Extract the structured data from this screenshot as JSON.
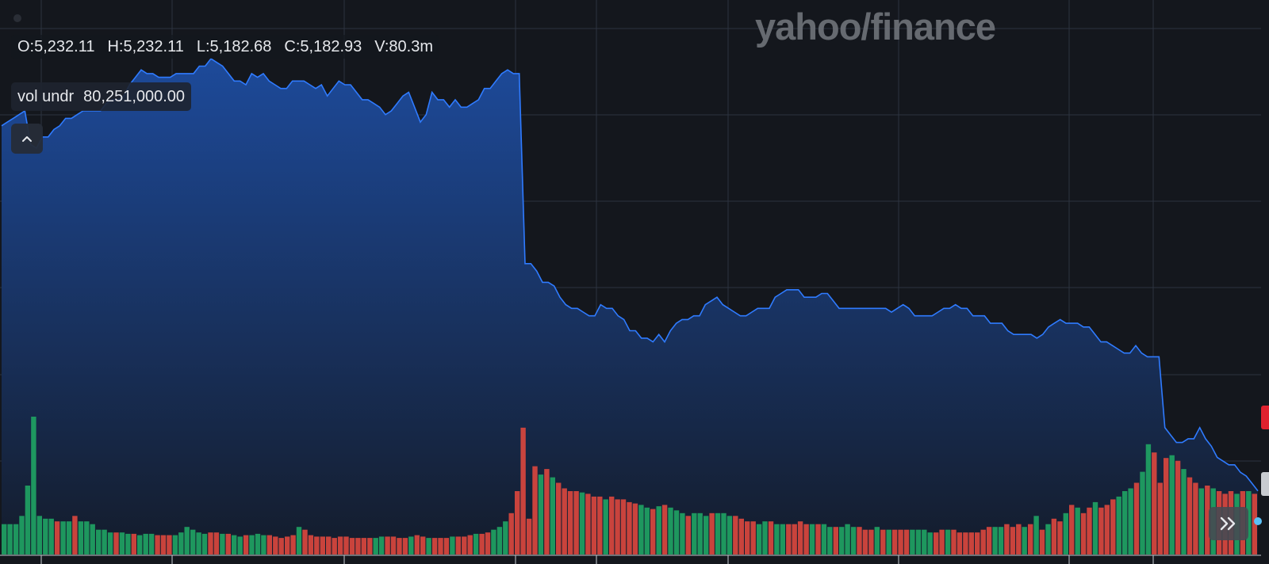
{
  "chart_data": {
    "type": "area",
    "price_series": [
      5244,
      5245,
      5246,
      5247,
      5248,
      5239,
      5238,
      5241,
      5241,
      5243,
      5244,
      5246,
      5246,
      5247,
      5248,
      5248,
      5248,
      5248,
      5250,
      5251,
      5251,
      5252,
      5255,
      5257,
      5259,
      5258,
      5258,
      5257,
      5257,
      5257,
      5258,
      5258,
      5258,
      5258,
      5260,
      5260,
      5262,
      5261,
      5260,
      5258,
      5256,
      5256,
      5255,
      5258,
      5257,
      5258,
      5256,
      5255,
      5254,
      5254,
      5256,
      5256,
      5256,
      5255,
      5254,
      5255,
      5252,
      5254,
      5256,
      5255,
      5255,
      5253,
      5251,
      5251,
      5250,
      5249,
      5247,
      5248,
      5250,
      5252,
      5253,
      5249,
      5245,
      5247,
      5253,
      5251,
      5251,
      5249,
      5251,
      5249,
      5249,
      5250,
      5251,
      5254,
      5254,
      5256,
      5258,
      5259,
      5258,
      5258,
      5207,
      5207,
      5205,
      5202,
      5202,
      5201,
      5198,
      5196,
      5195,
      5195,
      5194,
      5193,
      5193,
      5196,
      5195,
      5195,
      5193,
      5192,
      5189,
      5189,
      5187,
      5187,
      5186,
      5188,
      5186,
      5189,
      5191,
      5192,
      5192,
      5193,
      5193,
      5196,
      5197,
      5198,
      5196,
      5195,
      5194,
      5193,
      5193,
      5194,
      5195,
      5195,
      5195,
      5198,
      5199,
      5200,
      5200,
      5200,
      5198,
      5198,
      5198,
      5199,
      5199,
      5197,
      5195,
      5195,
      5195,
      5195,
      5195,
      5195,
      5195,
      5195,
      5195,
      5194,
      5195,
      5196,
      5195,
      5193,
      5193,
      5193,
      5193,
      5194,
      5195,
      5195,
      5196,
      5195,
      5195,
      5193,
      5193,
      5193,
      5191,
      5191,
      5191,
      5189,
      5188,
      5188,
      5188,
      5188,
      5187,
      5188,
      5190,
      5191,
      5192,
      5191,
      5191,
      5191,
      5190,
      5190,
      5188,
      5186,
      5186,
      5185,
      5184,
      5183,
      5183,
      5185,
      5183,
      5182,
      5182,
      5182,
      5163,
      5161,
      5159,
      5159,
      5160,
      5160,
      5163,
      5160,
      5158,
      5155,
      5154,
      5153,
      5153,
      5151,
      5150,
      5148,
      5146
    ],
    "volume_series": [
      0.22,
      0.22,
      0.22,
      0.28,
      0.5,
      1.0,
      0.28,
      0.26,
      0.26,
      0.24,
      0.24,
      0.24,
      0.28,
      0.24,
      0.24,
      0.22,
      0.18,
      0.18,
      0.16,
      0.16,
      0.16,
      0.15,
      0.15,
      0.14,
      0.15,
      0.15,
      0.14,
      0.14,
      0.14,
      0.14,
      0.16,
      0.2,
      0.18,
      0.16,
      0.15,
      0.16,
      0.16,
      0.15,
      0.15,
      0.14,
      0.13,
      0.14,
      0.14,
      0.15,
      0.14,
      0.14,
      0.13,
      0.12,
      0.13,
      0.14,
      0.2,
      0.18,
      0.14,
      0.13,
      0.13,
      0.13,
      0.12,
      0.13,
      0.13,
      0.12,
      0.12,
      0.12,
      0.12,
      0.12,
      0.13,
      0.13,
      0.13,
      0.12,
      0.12,
      0.13,
      0.14,
      0.13,
      0.12,
      0.12,
      0.12,
      0.12,
      0.13,
      0.13,
      0.13,
      0.14,
      0.15,
      0.15,
      0.16,
      0.18,
      0.2,
      0.24,
      0.3,
      0.46,
      0.92,
      0.26,
      0.64,
      0.58,
      0.62,
      0.56,
      0.52,
      0.48,
      0.46,
      0.46,
      0.45,
      0.44,
      0.42,
      0.42,
      0.4,
      0.42,
      0.4,
      0.4,
      0.38,
      0.37,
      0.36,
      0.34,
      0.33,
      0.35,
      0.36,
      0.34,
      0.32,
      0.3,
      0.28,
      0.3,
      0.3,
      0.28,
      0.3,
      0.3,
      0.3,
      0.28,
      0.28,
      0.26,
      0.24,
      0.24,
      0.22,
      0.24,
      0.24,
      0.22,
      0.22,
      0.22,
      0.22,
      0.24,
      0.22,
      0.22,
      0.22,
      0.22,
      0.2,
      0.2,
      0.2,
      0.22,
      0.2,
      0.2,
      0.18,
      0.18,
      0.2,
      0.18,
      0.18,
      0.18,
      0.18,
      0.18,
      0.18,
      0.18,
      0.18,
      0.16,
      0.16,
      0.18,
      0.18,
      0.18,
      0.16,
      0.16,
      0.16,
      0.16,
      0.18,
      0.2,
      0.2,
      0.2,
      0.22,
      0.2,
      0.22,
      0.2,
      0.22,
      0.28,
      0.18,
      0.22,
      0.26,
      0.24,
      0.3,
      0.36,
      0.34,
      0.3,
      0.34,
      0.38,
      0.34,
      0.36,
      0.4,
      0.42,
      0.46,
      0.48,
      0.52,
      0.6,
      0.8,
      0.74,
      0.52,
      0.7,
      0.72,
      0.68,
      0.62,
      0.56,
      0.52,
      0.48,
      0.5,
      0.48,
      0.46,
      0.44,
      0.46,
      0.44,
      0.46,
      0.46,
      0.44
    ],
    "volume_up": [
      1,
      1,
      1,
      1,
      1,
      1,
      1,
      1,
      1,
      0,
      1,
      1,
      0,
      1,
      1,
      1,
      1,
      1,
      1,
      0,
      1,
      1,
      0,
      1,
      1,
      1,
      0,
      0,
      0,
      1,
      1,
      1,
      1,
      1,
      1,
      0,
      0,
      1,
      0,
      1,
      1,
      0,
      1,
      1,
      1,
      0,
      0,
      0,
      0,
      0,
      1,
      0,
      0,
      0,
      0,
      0,
      0,
      0,
      0,
      0,
      0,
      0,
      0,
      1,
      1,
      0,
      0,
      0,
      0,
      1,
      0,
      0,
      1,
      0,
      0,
      0,
      1,
      0,
      0,
      0,
      1,
      0,
      0,
      1,
      1,
      1,
      0,
      0,
      0,
      0,
      0,
      1,
      0,
      1,
      0,
      0,
      0,
      0,
      1,
      0,
      0,
      0,
      1,
      0,
      0,
      0,
      0,
      0,
      1,
      1,
      0,
      1,
      0,
      1,
      1,
      1,
      0,
      1,
      1,
      1,
      0,
      1,
      1,
      1,
      0,
      0,
      0,
      0,
      1,
      1,
      0,
      1,
      1,
      0,
      0,
      0,
      0,
      1,
      0,
      1,
      1,
      0,
      1,
      1,
      1,
      0,
      0,
      0,
      1,
      0,
      1,
      0,
      0,
      0,
      1,
      1,
      1,
      1,
      0,
      0,
      1,
      0,
      0,
      0,
      0,
      0,
      0,
      0,
      1,
      1,
      0,
      0,
      0,
      1,
      0,
      1,
      0,
      1,
      0,
      0,
      1,
      0,
      1,
      0,
      0,
      1,
      0,
      0,
      0,
      1,
      1,
      1,
      0,
      1,
      1,
      0,
      0,
      0,
      1,
      0,
      1,
      0,
      0,
      1,
      0,
      1,
      0,
      0,
      0,
      1,
      0,
      1,
      0,
      1,
      0
    ],
    "grid": true,
    "legend": {
      "ohlc": [
        "O:5,232.11",
        "H:5,232.11",
        "L:5,182.68",
        "C:5,182.93",
        "V:80.3m"
      ],
      "study_label": "vol undr",
      "study_value": "80,251,000.00"
    },
    "watermark": "yahoo/finance"
  },
  "colors": {
    "background": "#14171d",
    "line": "#2f7bff",
    "area_top": "#1d4a9a",
    "area_bottom": "#141c2b",
    "volume_up": "#1fa263",
    "volume_down": "#d9473e",
    "grid": "#2c3340"
  },
  "icons": {
    "collapse": "chevron-up-icon",
    "scroll": "double-chevron-right-icon"
  }
}
